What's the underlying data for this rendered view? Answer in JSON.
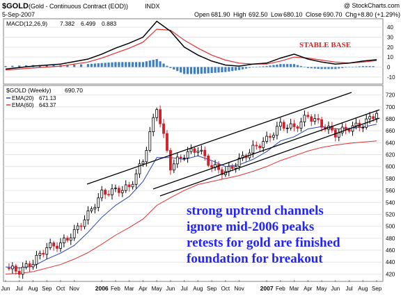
{
  "header": {
    "symbol": "$GOLD",
    "description": "(Gold - Continuous Contract (EOD))",
    "exchange": "INDX",
    "watermark": "@ StockCharts.com",
    "date": "5-Sep-2007",
    "open_label": "Open",
    "open": "681.90",
    "high_label": "High",
    "high": "692.50",
    "low_label": "Low",
    "low": "680.10",
    "close_label": "Close",
    "close": "690.70",
    "chg_label": "Chg",
    "chg": "+8.80 (+1.29%)"
  },
  "macd_panel": {
    "label": "MACD(12,26,9)",
    "v1": "7.382",
    "v2": "6.499",
    "v3": "0.883",
    "annotation": "STABLE BASE",
    "y_ticks": [
      "40",
      "30",
      "20",
      "10",
      "0",
      "-10"
    ]
  },
  "price_panel": {
    "label": "$GOLD (Weekly)",
    "last": "690.70",
    "ema20_label": "EMA(20)",
    "ema20_value": "671.13",
    "ema60_label": "EMA(60)",
    "ema60_value": "643.37",
    "y_ticks": [
      "720",
      "700",
      "680",
      "660",
      "640",
      "620",
      "600",
      "580",
      "560",
      "540",
      "520",
      "500",
      "480",
      "460",
      "440",
      "420"
    ],
    "annotation_lines": [
      "strong uptrend channels",
      "ignore mid-2006 peaks",
      "retests for gold are finished",
      "foundation for breakout"
    ]
  },
  "x_axis": {
    "labels": [
      "Jun",
      "Jul",
      "Aug",
      "Sep",
      "Oct",
      "Nov",
      "2006",
      "Feb",
      "Mar",
      "Apr",
      "May",
      "Jun",
      "Jul",
      "Aug",
      "Sep",
      "Oct",
      "Nov",
      "2007",
      "Feb",
      "Mar",
      "Apr",
      "May",
      "Jun",
      "Jul",
      "Aug",
      "Sep"
    ]
  },
  "colors": {
    "up": "#000000",
    "down": "#d0212a",
    "ema20": "#2442b0",
    "ema60": "#e03030",
    "signal": "#e03030",
    "hist": "#3d7fc4",
    "annotation": "#2323ff"
  },
  "chart_data": [
    {
      "type": "line",
      "title": "MACD(12,26,9)",
      "x": [
        "2005-06",
        "2005-08",
        "2005-10",
        "2005-12",
        "2006-01",
        "2006-02",
        "2006-03",
        "2006-04",
        "2006-05",
        "2006-06",
        "2006-07",
        "2006-08",
        "2006-09",
        "2006-10",
        "2006-11",
        "2006-12",
        "2007-01",
        "2007-02",
        "2007-03",
        "2007-04",
        "2007-05",
        "2007-06",
        "2007-07",
        "2007-08",
        "2007-09"
      ],
      "series": [
        {
          "name": "MACD",
          "values": [
            -2,
            1,
            3,
            8,
            13,
            19,
            24,
            30,
            46,
            36,
            20,
            12,
            6,
            2,
            1,
            3,
            4,
            9,
            13,
            8,
            5,
            3,
            4,
            6,
            7.4
          ]
        },
        {
          "name": "Signal",
          "values": [
            -3,
            -1,
            1,
            5,
            9,
            14,
            19,
            25,
            38,
            37,
            27,
            19,
            12,
            7,
            4,
            3,
            3,
            6,
            10,
            9,
            7,
            5,
            4,
            5,
            6.5
          ]
        }
      ],
      "histogram": [
        1,
        2,
        2,
        3,
        4,
        5,
        5,
        5,
        8,
        -1,
        -7,
        -7,
        -6,
        -5,
        -3,
        0,
        1,
        3,
        3,
        -1,
        -2,
        -2,
        0,
        1,
        0.9
      ],
      "ylim": [
        -15,
        45
      ],
      "yticks": [
        40,
        30,
        20,
        10,
        0,
        -10
      ]
    },
    {
      "type": "line",
      "title": "$GOLD (Weekly)",
      "x": [
        "2005-06",
        "2005-07",
        "2005-08",
        "2005-09",
        "2005-10",
        "2005-11",
        "2005-12",
        "2006-01",
        "2006-02",
        "2006-03",
        "2006-04",
        "2006-05",
        "2006-06",
        "2006-07",
        "2006-08",
        "2006-09",
        "2006-10",
        "2006-11",
        "2006-12",
        "2007-01",
        "2007-02",
        "2007-03",
        "2007-04",
        "2007-05",
        "2007-06",
        "2007-07",
        "2007-08",
        "2007-09"
      ],
      "series": [
        {
          "name": "$GOLD",
          "values": [
            430,
            425,
            440,
            465,
            470,
            490,
            520,
            555,
            560,
            565,
            610,
            700,
            600,
            620,
            630,
            600,
            590,
            610,
            630,
            645,
            670,
            665,
            685,
            670,
            655,
            665,
            670,
            691
          ]
        },
        {
          "name": "EMA(20)",
          "values": [
            432,
            430,
            433,
            445,
            455,
            468,
            490,
            515,
            535,
            550,
            575,
            615,
            615,
            612,
            618,
            610,
            600,
            603,
            612,
            625,
            643,
            650,
            663,
            667,
            663,
            664,
            666,
            671
          ]
        },
        {
          "name": "EMA(60)",
          "values": [
            420,
            421,
            424,
            430,
            436,
            445,
            456,
            470,
            485,
            498,
            512,
            535,
            548,
            560,
            570,
            575,
            580,
            585,
            592,
            600,
            610,
            618,
            626,
            632,
            636,
            639,
            641,
            643
          ]
        }
      ],
      "ylim": [
        410,
        730
      ],
      "yticks": [
        720,
        700,
        680,
        660,
        640,
        620,
        600,
        580,
        560,
        540,
        520,
        500,
        480,
        460,
        440,
        420
      ]
    }
  ]
}
